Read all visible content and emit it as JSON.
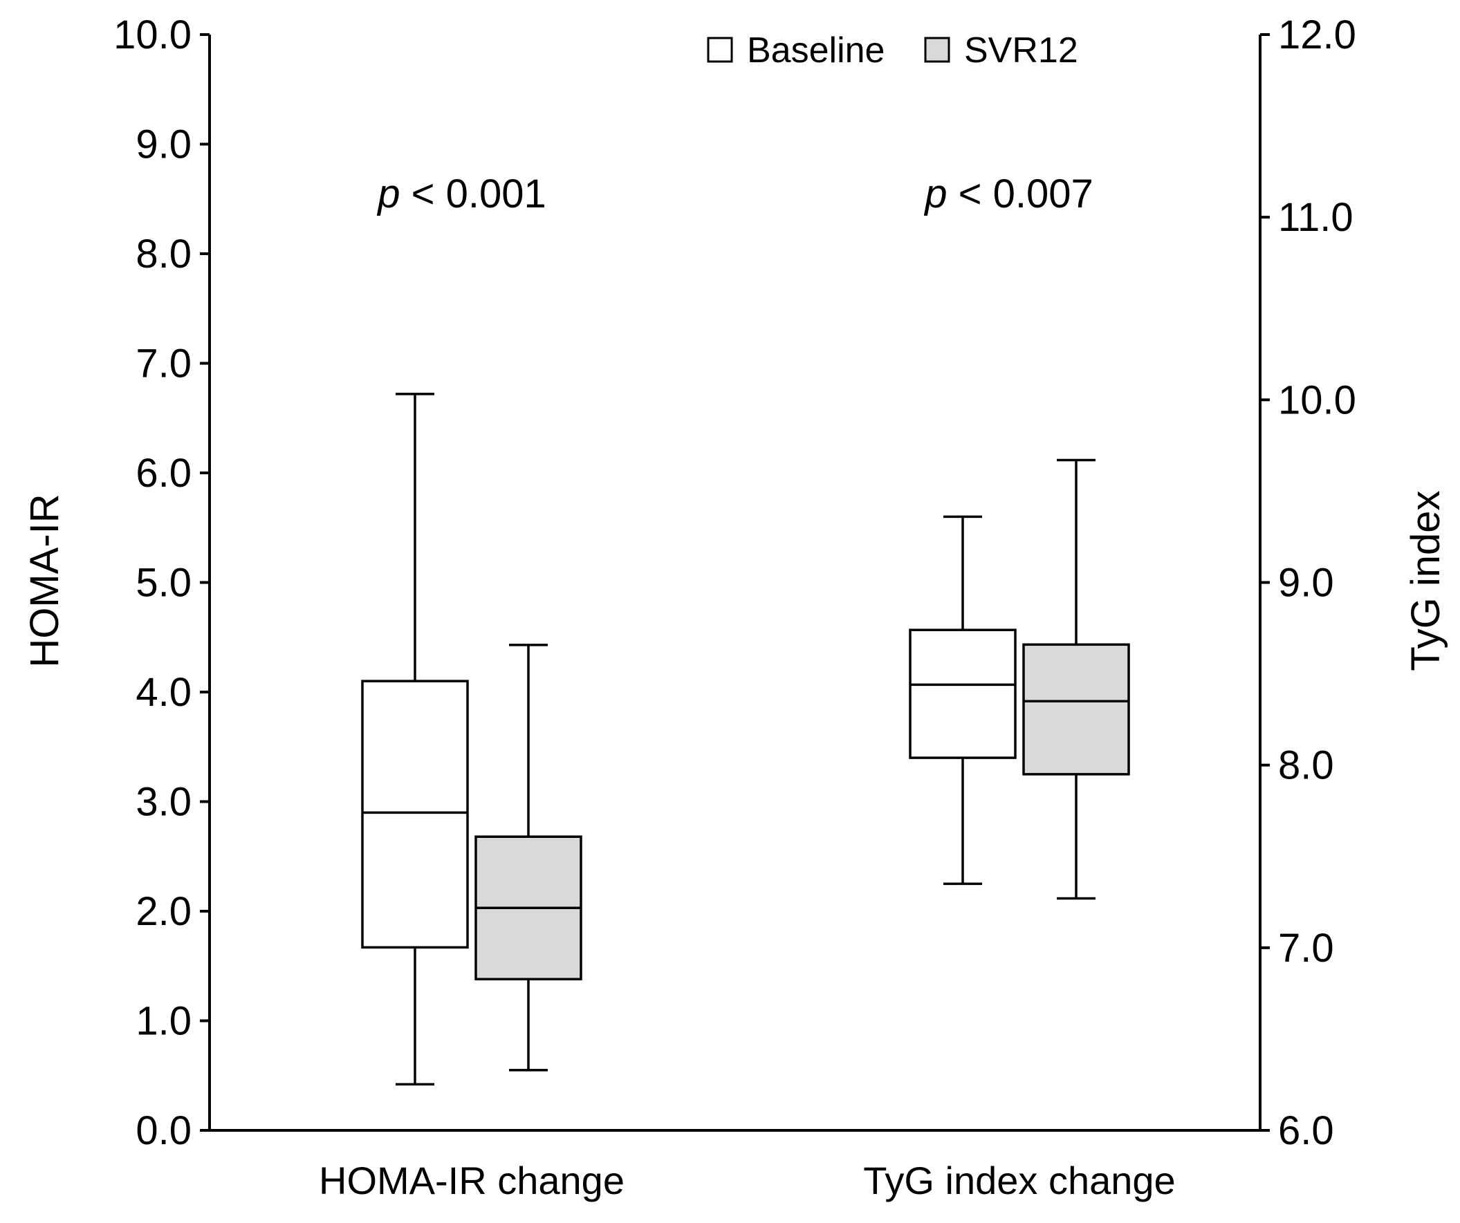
{
  "chart_data": {
    "type": "boxplot",
    "legend": [
      {
        "name": "Baseline",
        "color": "#ffffff"
      },
      {
        "name": "SVR12",
        "color": "#d9d9d9"
      }
    ],
    "left_axis": {
      "label": "HOMA-IR",
      "ylim": [
        0,
        10
      ],
      "ticks": [
        "0.0",
        "1.0",
        "2.0",
        "3.0",
        "4.0",
        "5.0",
        "6.0",
        "7.0",
        "8.0",
        "9.0",
        "10.0"
      ]
    },
    "right_axis": {
      "label": "TyG index",
      "ylim": [
        6,
        12
      ],
      "ticks": [
        "6.0",
        "7.0",
        "8.0",
        "9.0",
        "10.0",
        "11.0",
        "12.0"
      ]
    },
    "groups": [
      {
        "label": "HOMA-IR change",
        "axis": "left",
        "p_prefix": "p",
        "p_text": " < 0.001",
        "boxes": [
          {
            "series": "Baseline",
            "min": 0.42,
            "q1": 1.67,
            "median": 2.9,
            "q3": 4.1,
            "max": 6.72
          },
          {
            "series": "SVR12",
            "min": 0.55,
            "q1": 1.38,
            "median": 2.03,
            "q3": 2.68,
            "max": 4.43
          }
        ]
      },
      {
        "label": "TyG index change",
        "axis": "right",
        "p_prefix": "p",
        "p_text": " < 0.007",
        "boxes": [
          {
            "series": "Baseline",
            "min": 7.35,
            "q1": 8.04,
            "median": 8.44,
            "q3": 8.74,
            "max": 9.36
          },
          {
            "series": "SVR12",
            "min": 7.27,
            "q1": 7.95,
            "median": 8.35,
            "q3": 8.66,
            "max": 9.67
          }
        ]
      }
    ]
  }
}
